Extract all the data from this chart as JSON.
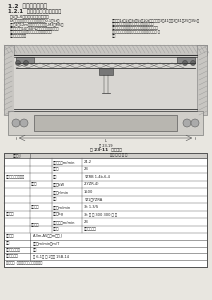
{
  "bg_color": "#e8e6e0",
  "text_color": "#222222",
  "lc": "#555555",
  "title": "1.2  电动单梁起重机",
  "sec_title": "1.2.1  起重量范围与起重机概述",
  "sub_title": "（1）LX型电动单梁悬挂起重机",
  "para1_lines": [
    "LX型电动单梁悬挂起重机的起重量为0.1～5t，",
    "跨度为1～12m，工作级别为人工级,M3～M5；",
    "工作温度为－10～40℃，它适用于车间、仓库",
    "等处，起重量较小的地方，用于一般机械及各",
    "种辅助设备装卸。"
  ],
  "para2_header": "起重量分1t、2t、3t、5t、10t等；跨度为3～41，跨3～41，25～35t。",
  "para2_lines": [
    "本起重机不宜在有大量尘埃、腐蚀物质、易爆",
    "中等规模以上的起重设备的场合使用。起重机工作",
    "在，不允许在有易爆气体的空间用，全部、具备 能",
    "够。"
  ],
  "fig_caption1": "图 23-19",
  "fig_caption2": "表 23-11  规格参数",
  "table_header_col1": "规格量·J",
  "table_header_col2": "主要 公 称 尺 寸",
  "table_rows": [
    {
      "group": "提升高度及升降机构",
      "sub": "",
      "item": "起吊速度，m/min",
      "val": "24-2"
    },
    {
      "group": "",
      "sub": "",
      "item": "绳速比",
      "val": "2B"
    },
    {
      "group": "",
      "sub": "电动机",
      "item": "型号",
      "val": "YZRB 1-4b-6-4"
    },
    {
      "group": "",
      "sub": "",
      "item": "功率，kW",
      "val": "2(YZR-4)"
    },
    {
      "group": "",
      "sub": "",
      "item": "转速，r/min",
      "val": "1500"
    },
    {
      "group": "运动部件",
      "sub": "起升机构",
      "item": "型号",
      "val": "YZL、YZRA"
    },
    {
      "group": "",
      "sub": "",
      "item": "速度，m/min",
      "val": "3t 1.3/S"
    },
    {
      "group": "",
      "sub": "",
      "item": "重量，kg",
      "val": "3t 单 双 300 300 重 项"
    },
    {
      "group": "",
      "sub": "运行机构",
      "item": "速度，轨距m/min",
      "val": "2B"
    },
    {
      "group": "",
      "sub": "",
      "item": "轨距型",
      "val": "轨距锥度调整"
    }
  ],
  "footer_rows": [
    {
      "label": "工作级别",
      "val": "A3m-A5，及m附件 J"
    },
    {
      "label": "允许",
      "val": "中速，m/min，m/T"
    },
    {
      "label": "主要配套、配套",
      "val": "见图"
    },
    {
      "label": "其他工作参数",
      "val": "序 6-1～ 序 2次以 15B-14"
    }
  ],
  "note": "注：数字  上限和起重重量配置选，。"
}
